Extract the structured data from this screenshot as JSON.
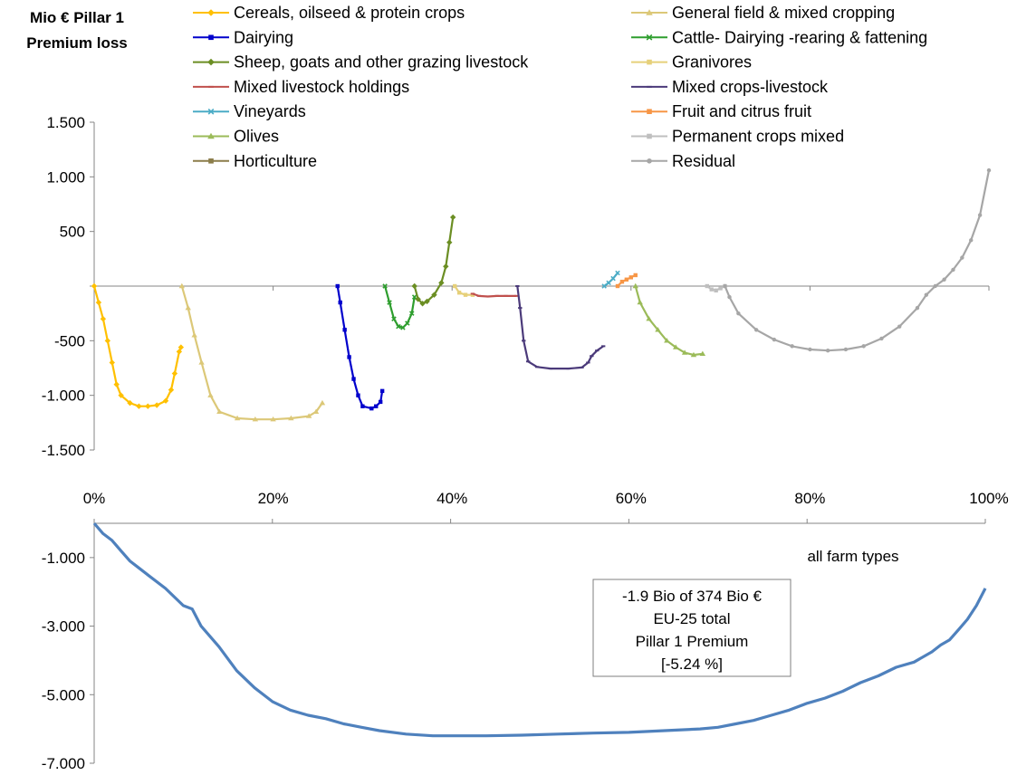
{
  "chart_data": [
    {
      "type": "line",
      "title_lines": [
        "Mio € Pillar 1",
        "Premium loss"
      ],
      "xlabel": "",
      "ylabel": "",
      "xlim": [
        0,
        100
      ],
      "ylim": [
        -1500,
        1500
      ],
      "x_tick_labels": [
        "0%",
        "20%",
        "40%",
        "60%",
        "80%",
        "100%"
      ],
      "y_ticks": [
        1500,
        1000,
        500,
        0,
        -500,
        -1000,
        -1500
      ],
      "y_tick_labels": [
        "1.500",
        "1.000",
        "500",
        "",
        "-500",
        "-1.000",
        "-1.500"
      ],
      "grid": false,
      "legend_position": "top",
      "series": [
        {
          "name": "Cereals, oilseed & protein crops",
          "color": "#FFC000",
          "marker": "diamond",
          "x": [
            0,
            0.5,
            1,
            1.5,
            2,
            2.5,
            3,
            4,
            5,
            6,
            7,
            8,
            8.6,
            9,
            9.5,
            9.7
          ],
          "y": [
            0,
            -150,
            -300,
            -500,
            -700,
            -900,
            -1000,
            -1070,
            -1100,
            -1100,
            -1090,
            -1050,
            -950,
            -800,
            -600,
            -560
          ]
        },
        {
          "name": "General field & mixed cropping",
          "color": "#DCC878",
          "marker": "triangle",
          "x": [
            9.8,
            10.5,
            11.2,
            12,
            13,
            14,
            16,
            18,
            20,
            22,
            24,
            24.8,
            25.5
          ],
          "y": [
            0,
            -200,
            -450,
            -700,
            -1000,
            -1150,
            -1210,
            -1220,
            -1220,
            -1210,
            -1190,
            -1150,
            -1070
          ]
        },
        {
          "name": "Dairying",
          "color": "#0000CC",
          "marker": "square",
          "x": [
            27.2,
            27.5,
            28,
            28.5,
            29,
            29.5,
            30,
            31,
            31.5,
            32,
            32.2
          ],
          "y": [
            0,
            -150,
            -400,
            -650,
            -850,
            -1000,
            -1100,
            -1120,
            -1100,
            -1060,
            -960
          ]
        },
        {
          "name": "Cattle- Dairying -rearing & fattening",
          "color": "#2E9E2E",
          "marker": "x",
          "x": [
            32.5,
            33,
            33.5,
            34,
            34.5,
            35,
            35.5,
            35.8
          ],
          "y": [
            0,
            -150,
            -300,
            -370,
            -380,
            -340,
            -250,
            -100
          ]
        },
        {
          "name": "Sheep, goats and other grazing livestock",
          "color": "#6B8E23",
          "marker": "diamond",
          "x": [
            35.8,
            36.2,
            36.7,
            37.2,
            38,
            38.8,
            39.3,
            39.7,
            40.1
          ],
          "y": [
            0,
            -120,
            -160,
            -140,
            -80,
            30,
            180,
            400,
            630
          ]
        },
        {
          "name": "Granivores",
          "color": "#E6D07A",
          "marker": "square",
          "x": [
            40.3,
            40.8,
            41.5,
            42.3
          ],
          "y": [
            0,
            -60,
            -80,
            -80
          ]
        },
        {
          "name": "Mixed livestock holdings",
          "color": "#C0504D",
          "marker": "dash",
          "x": [
            42.3,
            43,
            44,
            45,
            46,
            47.2
          ],
          "y": [
            -70,
            -90,
            -95,
            -90,
            -90,
            -90
          ]
        },
        {
          "name": "Mixed crops-livestock",
          "color": "#4B3A7A",
          "marker": "dash",
          "x": [
            47.3,
            47.6,
            48,
            48.5,
            49.5,
            51,
            53,
            54.5,
            55.2,
            55.6,
            56.2,
            56.9
          ],
          "y": [
            0,
            -200,
            -500,
            -690,
            -740,
            -755,
            -755,
            -745,
            -700,
            -640,
            -590,
            -550
          ]
        },
        {
          "name": "Vineyards",
          "color": "#4BACC6",
          "marker": "x",
          "x": [
            57,
            57.5,
            58,
            58.5
          ],
          "y": [
            0,
            30,
            70,
            120
          ]
        },
        {
          "name": "Fruit and citrus fruit",
          "color": "#F79646",
          "marker": "square",
          "x": [
            58.5,
            59,
            59.5,
            60,
            60.5
          ],
          "y": [
            0,
            40,
            60,
            80,
            100
          ]
        },
        {
          "name": "Olives",
          "color": "#9BBB59",
          "marker": "triangle",
          "x": [
            60.5,
            61,
            62,
            63,
            64,
            65,
            66,
            67,
            68
          ],
          "y": [
            0,
            -150,
            -300,
            -400,
            -500,
            -560,
            -610,
            -630,
            -620
          ]
        },
        {
          "name": "Permanent crops mixed",
          "color": "#BFBFBF",
          "marker": "square",
          "x": [
            68.5,
            69,
            69.5,
            70,
            70.5
          ],
          "y": [
            0,
            -30,
            -40,
            -20,
            0
          ]
        },
        {
          "name": "Horticulture",
          "color": "#8B7D4A",
          "marker": "square",
          "x": [],
          "y": []
        },
        {
          "name": "Residual",
          "color": "#A6A6A6",
          "marker": "circle",
          "x": [
            70.5,
            71,
            72,
            74,
            76,
            78,
            80,
            82,
            84,
            86,
            88,
            90,
            92,
            93,
            94,
            95,
            96,
            97,
            98,
            99,
            100
          ],
          "y": [
            0,
            -100,
            -250,
            -400,
            -490,
            -550,
            -580,
            -590,
            -580,
            -550,
            -480,
            -370,
            -200,
            -80,
            0,
            60,
            150,
            260,
            420,
            650,
            1060
          ]
        }
      ]
    },
    {
      "type": "line",
      "series_label": "all farm types",
      "xlim": [
        0,
        100
      ],
      "ylim": [
        -7000,
        0
      ],
      "y_ticks": [
        -1000,
        -3000,
        -5000,
        -7000
      ],
      "y_tick_labels": [
        "-1.000",
        "-3.000",
        "-5.000",
        "-7.000"
      ],
      "grid": false,
      "series": [
        {
          "name": "all farm types",
          "color": "#4F81BD",
          "x": [
            0,
            1,
            2,
            3,
            4,
            5,
            6,
            8,
            10,
            11,
            12,
            14,
            16,
            18,
            20,
            22,
            24,
            26,
            28,
            30,
            32,
            35,
            38,
            40,
            44,
            48,
            52,
            56,
            60,
            64,
            68,
            70,
            72,
            74,
            76,
            78,
            80,
            82,
            84,
            86,
            88,
            90,
            92,
            94,
            95,
            96,
            97,
            98,
            99,
            100
          ],
          "y": [
            0,
            -300,
            -500,
            -800,
            -1100,
            -1300,
            -1500,
            -1900,
            -2400,
            -2500,
            -3000,
            -3600,
            -4300,
            -4800,
            -5200,
            -5450,
            -5600,
            -5700,
            -5850,
            -5950,
            -6050,
            -6150,
            -6200,
            -6200,
            -6200,
            -6180,
            -6150,
            -6120,
            -6100,
            -6050,
            -6000,
            -5950,
            -5850,
            -5750,
            -5600,
            -5450,
            -5250,
            -5100,
            -4900,
            -4650,
            -4450,
            -4200,
            -4050,
            -3750,
            -3550,
            -3400,
            -3100,
            -2800,
            -2400,
            -1900
          ]
        }
      ],
      "annotation_lines": [
        "-1.9 Bio of 374 Bio €",
        "EU-25 total",
        "Pillar 1 Premium",
        "[-5.24 %]"
      ]
    }
  ]
}
